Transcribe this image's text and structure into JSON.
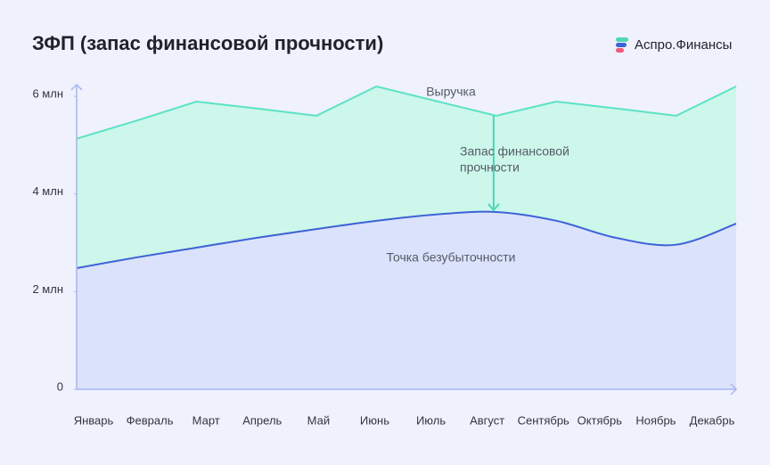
{
  "chart_data": {
    "type": "area",
    "title": "ЗФП (запас финансовой прочности)",
    "brand": "Аспро.Финансы",
    "categories": [
      "Январь",
      "Февраль",
      "Март",
      "Апрель",
      "Май",
      "Июнь",
      "Июль",
      "Август",
      "Сентябрь",
      "Октябрь",
      "Ноябрь",
      "Декабрь"
    ],
    "series": [
      {
        "name": "Выручка",
        "color": "#5be3c4",
        "fill": "#ccf7ea",
        "smooth": false,
        "values": [
          5.13,
          5.5,
          5.89,
          5.75,
          5.6,
          6.2,
          5.9,
          5.6,
          5.89,
          5.75,
          5.6,
          6.2
        ]
      },
      {
        "name": "Точка безубыточности",
        "color": "#3d62d6",
        "fill": "#dbe2fb",
        "smooth": true,
        "values": [
          2.48,
          2.7,
          2.9,
          3.1,
          3.28,
          3.45,
          3.58,
          3.63,
          3.45,
          3.1,
          2.96,
          3.39
        ]
      }
    ],
    "annotation": [
      "Запас финансовой",
      "прочности"
    ],
    "ylim": [
      0,
      6
    ],
    "yticks": [
      0,
      {
        "value": 2,
        "label": "2 млн"
      },
      {
        "value": 4,
        "label": "4 млн"
      },
      {
        "value": 6,
        "label": "6 млн"
      }
    ]
  }
}
